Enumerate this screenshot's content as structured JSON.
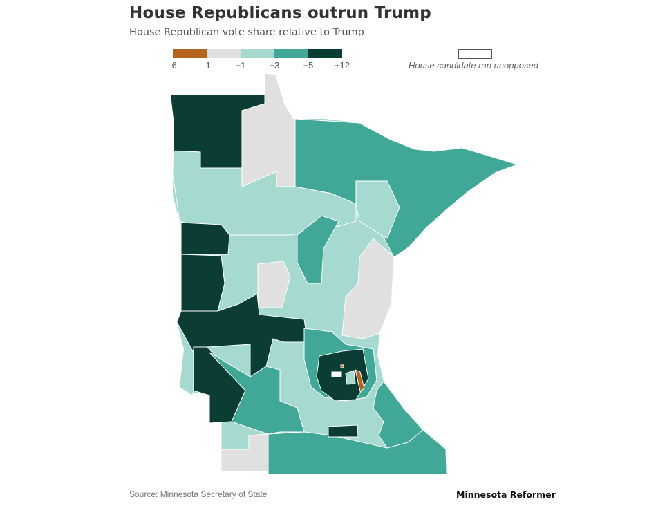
{
  "title": "House Republicans outrun Trump",
  "subtitle": "House Republican vote share relative to Trump",
  "legend": {
    "swatches": [
      {
        "color": "#b5651d"
      },
      {
        "color": "#e0e0e0"
      },
      {
        "color": "#a6d9cf"
      },
      {
        "color": "#41a898"
      },
      {
        "color": "#0b3d35"
      }
    ],
    "labels": [
      "-6",
      "-1",
      "+1",
      "+3",
      "+5",
      "+12"
    ],
    "unopposed_color": "#ffffff",
    "unopposed_label": "House candidate ran unopposed"
  },
  "source": "Source: Minnesota Secretary of State",
  "brand": "Minnesota Reformer",
  "colors": {
    "neg6_to_neg1": "#b5651d",
    "neg1_to_pos1": "#e0e0e0",
    "pos1_to_pos3": "#a6d9cf",
    "pos3_to_pos5": "#41a898",
    "pos5_to_pos12": "#0b3d35",
    "border": "#ffffff"
  }
}
